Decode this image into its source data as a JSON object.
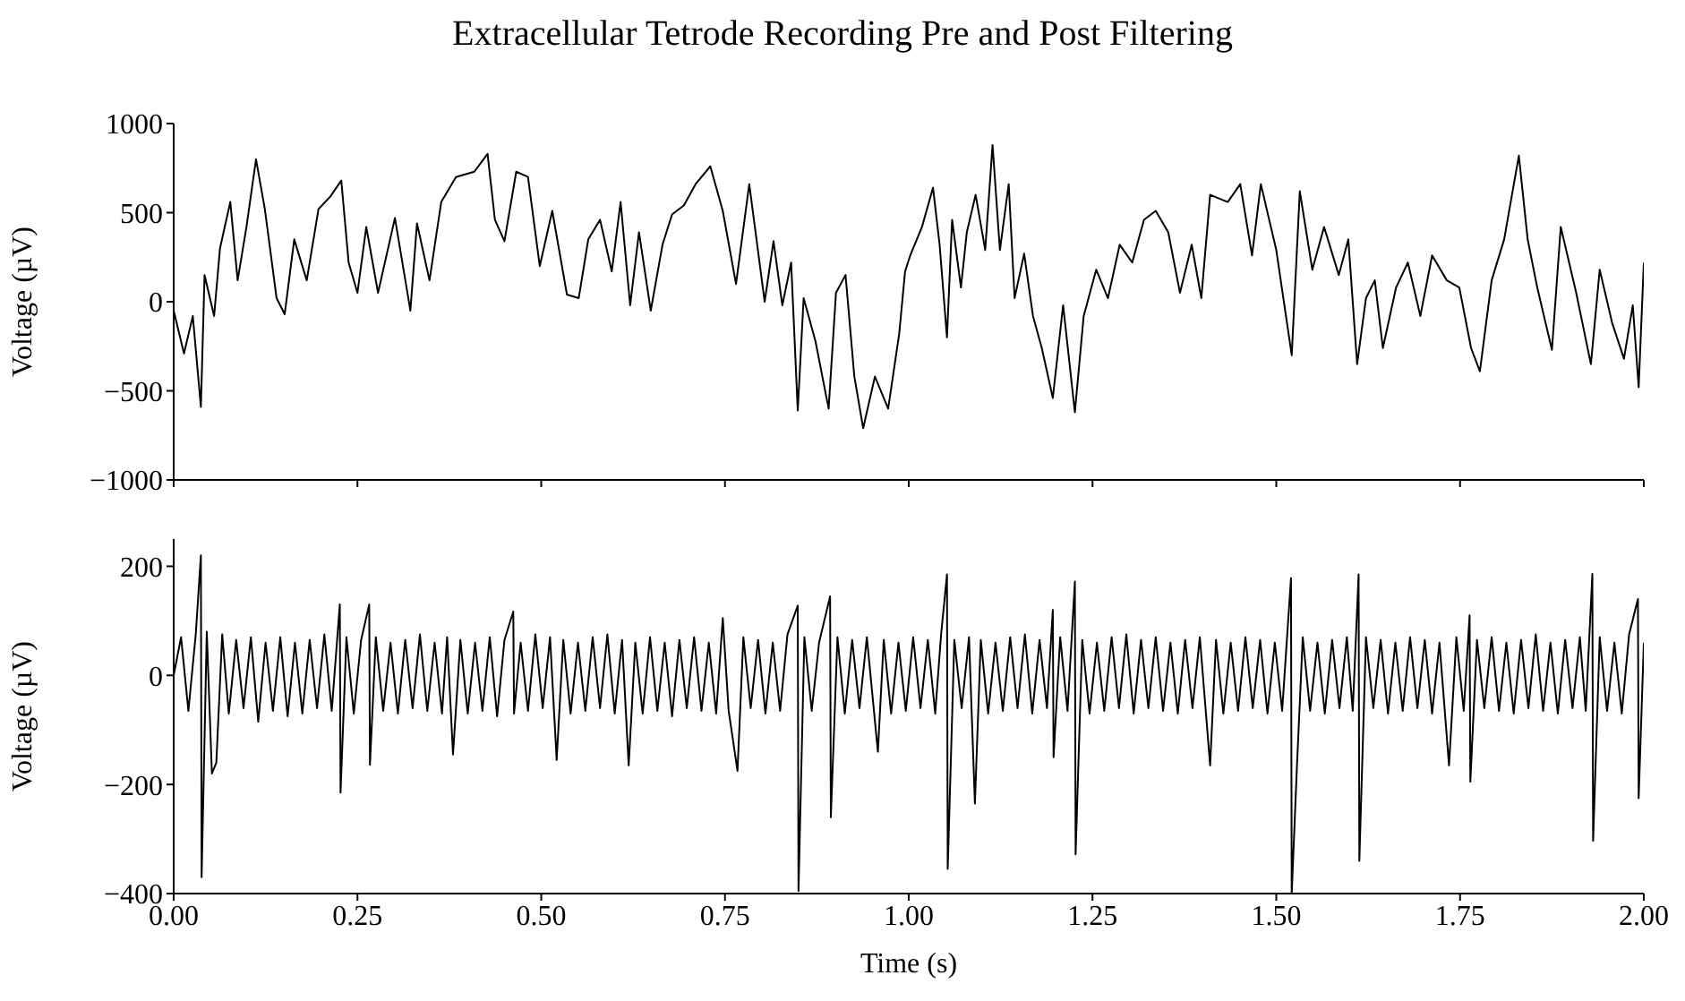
{
  "chart_data": [
    {
      "type": "line",
      "title": "Extracellular Tetrode Recording Pre and Post Filtering",
      "ylabel": "Voltage (µV)",
      "xlim": [
        0,
        2
      ],
      "xticks": [
        0,
        0.25,
        0.5,
        0.75,
        1,
        1.25,
        1.5,
        1.75,
        2
      ],
      "ylim": [
        -1000,
        1000
      ],
      "yticks": [
        {
          "value": -1000,
          "label": "−1000"
        },
        {
          "value": -500,
          "label": "−500"
        },
        0,
        500,
        1000
      ],
      "tick_labels": "y",
      "series": [
        {
          "color": "#000000",
          "x": [
            0,
            0.014,
            0.026,
            0.037,
            0.042,
            0.055,
            0.063,
            0.077,
            0.087,
            0.099,
            0.112,
            0.124,
            0.14,
            0.151,
            0.164,
            0.181,
            0.197,
            0.213,
            0.228,
            0.238,
            0.25,
            0.262,
            0.278,
            0.301,
            0.322,
            0.331,
            0.348,
            0.364,
            0.384,
            0.409,
            0.427,
            0.437,
            0.45,
            0.466,
            0.482,
            0.498,
            0.515,
            0.535,
            0.551,
            0.564,
            0.58,
            0.596,
            0.608,
            0.621,
            0.633,
            0.649,
            0.665,
            0.678,
            0.694,
            0.71,
            0.73,
            0.747,
            0.765,
            0.783,
            0.804,
            0.816,
            0.828,
            0.84,
            0.849,
            0.857,
            0.873,
            0.891,
            0.901,
            0.914,
            0.926,
            0.938,
            0.954,
            0.972,
            0.987,
            0.995,
            1.002,
            1.018,
            1.033,
            1.042,
            1.052,
            1.059,
            1.071,
            1.079,
            1.091,
            1.104,
            1.114,
            1.124,
            1.136,
            1.144,
            1.157,
            1.169,
            1.181,
            1.196,
            1.21,
            1.226,
            1.238,
            1.255,
            1.271,
            1.287,
            1.304,
            1.32,
            1.336,
            1.353,
            1.369,
            1.385,
            1.398,
            1.41,
            1.434,
            1.451,
            1.467,
            1.479,
            1.5,
            1.521,
            1.532,
            1.549,
            1.565,
            1.585,
            1.598,
            1.61,
            1.622,
            1.634,
            1.645,
            1.663,
            1.679,
            1.696,
            1.712,
            1.732,
            1.749,
            1.765,
            1.777,
            1.793,
            1.81,
            1.83,
            1.842,
            1.855,
            1.875,
            1.887,
            1.908,
            1.928,
            1.94,
            1.957,
            1.973,
            1.985,
            1.993,
            2.0
          ],
          "values": [
            -50,
            -290,
            -80,
            -590,
            150,
            -80,
            300,
            560,
            120,
            420,
            800,
            520,
            20,
            -70,
            350,
            120,
            520,
            590,
            680,
            220,
            50,
            420,
            50,
            470,
            -50,
            440,
            120,
            560,
            700,
            730,
            830,
            460,
            340,
            730,
            700,
            200,
            510,
            40,
            20,
            350,
            460,
            170,
            560,
            -20,
            390,
            -50,
            320,
            490,
            540,
            660,
            760,
            510,
            100,
            660,
            0,
            340,
            -20,
            220,
            -610,
            20,
            -220,
            -600,
            50,
            150,
            -420,
            -710,
            -420,
            -600,
            -180,
            170,
            260,
            420,
            640,
            320,
            -200,
            460,
            80,
            390,
            600,
            290,
            880,
            290,
            660,
            20,
            270,
            -80,
            -260,
            -540,
            -20,
            -620,
            -80,
            180,
            20,
            320,
            220,
            460,
            510,
            390,
            50,
            320,
            20,
            600,
            560,
            660,
            260,
            660,
            290,
            -300,
            620,
            180,
            420,
            150,
            350,
            -350,
            20,
            120,
            -260,
            80,
            220,
            -80,
            260,
            120,
            80,
            -260,
            -390,
            120,
            350,
            820,
            350,
            80,
            -270,
            420,
            50,
            -350,
            180,
            -120,
            -320,
            -20,
            -480,
            220
          ]
        }
      ]
    },
    {
      "type": "line",
      "xlabel": "Time (s)",
      "ylabel": "Voltage (µV)",
      "xlim": [
        0,
        2
      ],
      "xticks": [
        {
          "value": 0,
          "label": "0.00"
        },
        {
          "value": 0.25,
          "label": "0.25"
        },
        {
          "value": 0.5,
          "label": "0.50"
        },
        {
          "value": 0.75,
          "label": "0.75"
        },
        {
          "value": 1,
          "label": "1.00"
        },
        {
          "value": 1.25,
          "label": "1.25"
        },
        {
          "value": 1.5,
          "label": "1.50"
        },
        {
          "value": 1.75,
          "label": "1.75"
        },
        {
          "value": 2,
          "label": "2.00"
        }
      ],
      "ylim": [
        -400,
        250
      ],
      "yticks": [
        {
          "value": -400,
          "label": "−400"
        },
        {
          "value": -200,
          "label": "−200"
        },
        0,
        200
      ],
      "series": [
        {
          "color": "#000000",
          "x": [
            0,
            0.01,
            0.02,
            0.03,
            0.037,
            0.038,
            0.045,
            0.052,
            0.058,
            0.066,
            0.075,
            0.085,
            0.095,
            0.105,
            0.115,
            0.125,
            0.135,
            0.145,
            0.155,
            0.165,
            0.175,
            0.185,
            0.195,
            0.205,
            0.215,
            0.226,
            0.227,
            0.235,
            0.245,
            0.255,
            0.266,
            0.267,
            0.275,
            0.285,
            0.295,
            0.305,
            0.315,
            0.325,
            0.335,
            0.345,
            0.355,
            0.365,
            0.372,
            0.38,
            0.39,
            0.4,
            0.41,
            0.42,
            0.43,
            0.44,
            0.45,
            0.462,
            0.463,
            0.472,
            0.482,
            0.492,
            0.502,
            0.512,
            0.521,
            0.53,
            0.54,
            0.55,
            0.56,
            0.57,
            0.58,
            0.59,
            0.6,
            0.61,
            0.619,
            0.628,
            0.638,
            0.648,
            0.658,
            0.668,
            0.678,
            0.688,
            0.698,
            0.708,
            0.718,
            0.728,
            0.738,
            0.747,
            0.755,
            0.767,
            0.775,
            0.785,
            0.795,
            0.805,
            0.815,
            0.825,
            0.835,
            0.849,
            0.85,
            0.858,
            0.868,
            0.878,
            0.893,
            0.894,
            0.903,
            0.913,
            0.923,
            0.933,
            0.943,
            0.958,
            0.966,
            0.976,
            0.986,
            0.996,
            1.006,
            1.016,
            1.026,
            1.036,
            1.044,
            1.052,
            1.053,
            1.062,
            1.072,
            1.082,
            1.09,
            1.098,
            1.108,
            1.118,
            1.128,
            1.138,
            1.148,
            1.158,
            1.168,
            1.178,
            1.188,
            1.196,
            1.197,
            1.206,
            1.216,
            1.226,
            1.227,
            1.236,
            1.246,
            1.256,
            1.266,
            1.276,
            1.286,
            1.296,
            1.306,
            1.316,
            1.326,
            1.336,
            1.346,
            1.356,
            1.366,
            1.376,
            1.386,
            1.396,
            1.41,
            1.418,
            1.428,
            1.438,
            1.448,
            1.458,
            1.468,
            1.478,
            1.488,
            1.498,
            1.508,
            1.52,
            1.521,
            1.528,
            1.536,
            1.546,
            1.556,
            1.566,
            1.576,
            1.586,
            1.596,
            1.604,
            1.612,
            1.613,
            1.622,
            1.632,
            1.642,
            1.652,
            1.662,
            1.672,
            1.682,
            1.692,
            1.702,
            1.712,
            1.722,
            1.735,
            1.745,
            1.755,
            1.763,
            1.764,
            1.773,
            1.783,
            1.793,
            1.803,
            1.813,
            1.823,
            1.833,
            1.843,
            1.853,
            1.863,
            1.873,
            1.883,
            1.893,
            1.903,
            1.913,
            1.921,
            1.93,
            1.931,
            1.94,
            1.95,
            1.96,
            1.97,
            1.98,
            1.992,
            1.993,
            2.0
          ],
          "values": [
            0,
            70,
            -65,
            75,
            220,
            -370,
            80,
            -180,
            -160,
            75,
            -70,
            65,
            -60,
            70,
            -85,
            60,
            -65,
            70,
            -75,
            60,
            -70,
            65,
            -60,
            75,
            -65,
            130,
            -215,
            70,
            -70,
            65,
            130,
            -164,
            70,
            -65,
            60,
            -70,
            65,
            -60,
            75,
            -65,
            60,
            -70,
            70,
            -145,
            65,
            -70,
            60,
            -65,
            70,
            -75,
            65,
            117,
            -70,
            60,
            -65,
            75,
            -60,
            70,
            -155,
            65,
            -70,
            60,
            -65,
            70,
            -60,
            75,
            -70,
            65,
            -165,
            60,
            -70,
            70,
            -65,
            60,
            -75,
            65,
            -60,
            70,
            -65,
            60,
            -70,
            105,
            -65,
            -175,
            70,
            -60,
            65,
            -70,
            60,
            -65,
            75,
            128,
            -395,
            70,
            -65,
            60,
            145,
            -260,
            70,
            -70,
            65,
            -60,
            70,
            -140,
            65,
            -70,
            60,
            -65,
            70,
            -60,
            65,
            -70,
            75,
            185,
            -355,
            65,
            -60,
            70,
            -235,
            65,
            -70,
            60,
            -65,
            70,
            -60,
            75,
            -70,
            65,
            -60,
            120,
            -150,
            70,
            -65,
            172,
            -328,
            65,
            -70,
            60,
            -65,
            70,
            -60,
            75,
            -70,
            65,
            -60,
            70,
            -65,
            60,
            -70,
            65,
            -60,
            70,
            -165,
            65,
            -70,
            60,
            -65,
            70,
            -60,
            65,
            -70,
            60,
            -65,
            178,
            -400,
            -170,
            70,
            -65,
            60,
            -70,
            65,
            -60,
            70,
            -65,
            185,
            -340,
            70,
            -60,
            65,
            -70,
            60,
            -65,
            70,
            -60,
            65,
            -70,
            60,
            -165,
            70,
            -65,
            110,
            -195,
            65,
            -60,
            70,
            -65,
            60,
            -70,
            65,
            -60,
            75,
            -65,
            60,
            -70,
            65,
            -60,
            70,
            -65,
            186,
            -303,
            70,
            -65,
            60,
            -70,
            75,
            140,
            -225,
            60
          ]
        }
      ]
    }
  ]
}
